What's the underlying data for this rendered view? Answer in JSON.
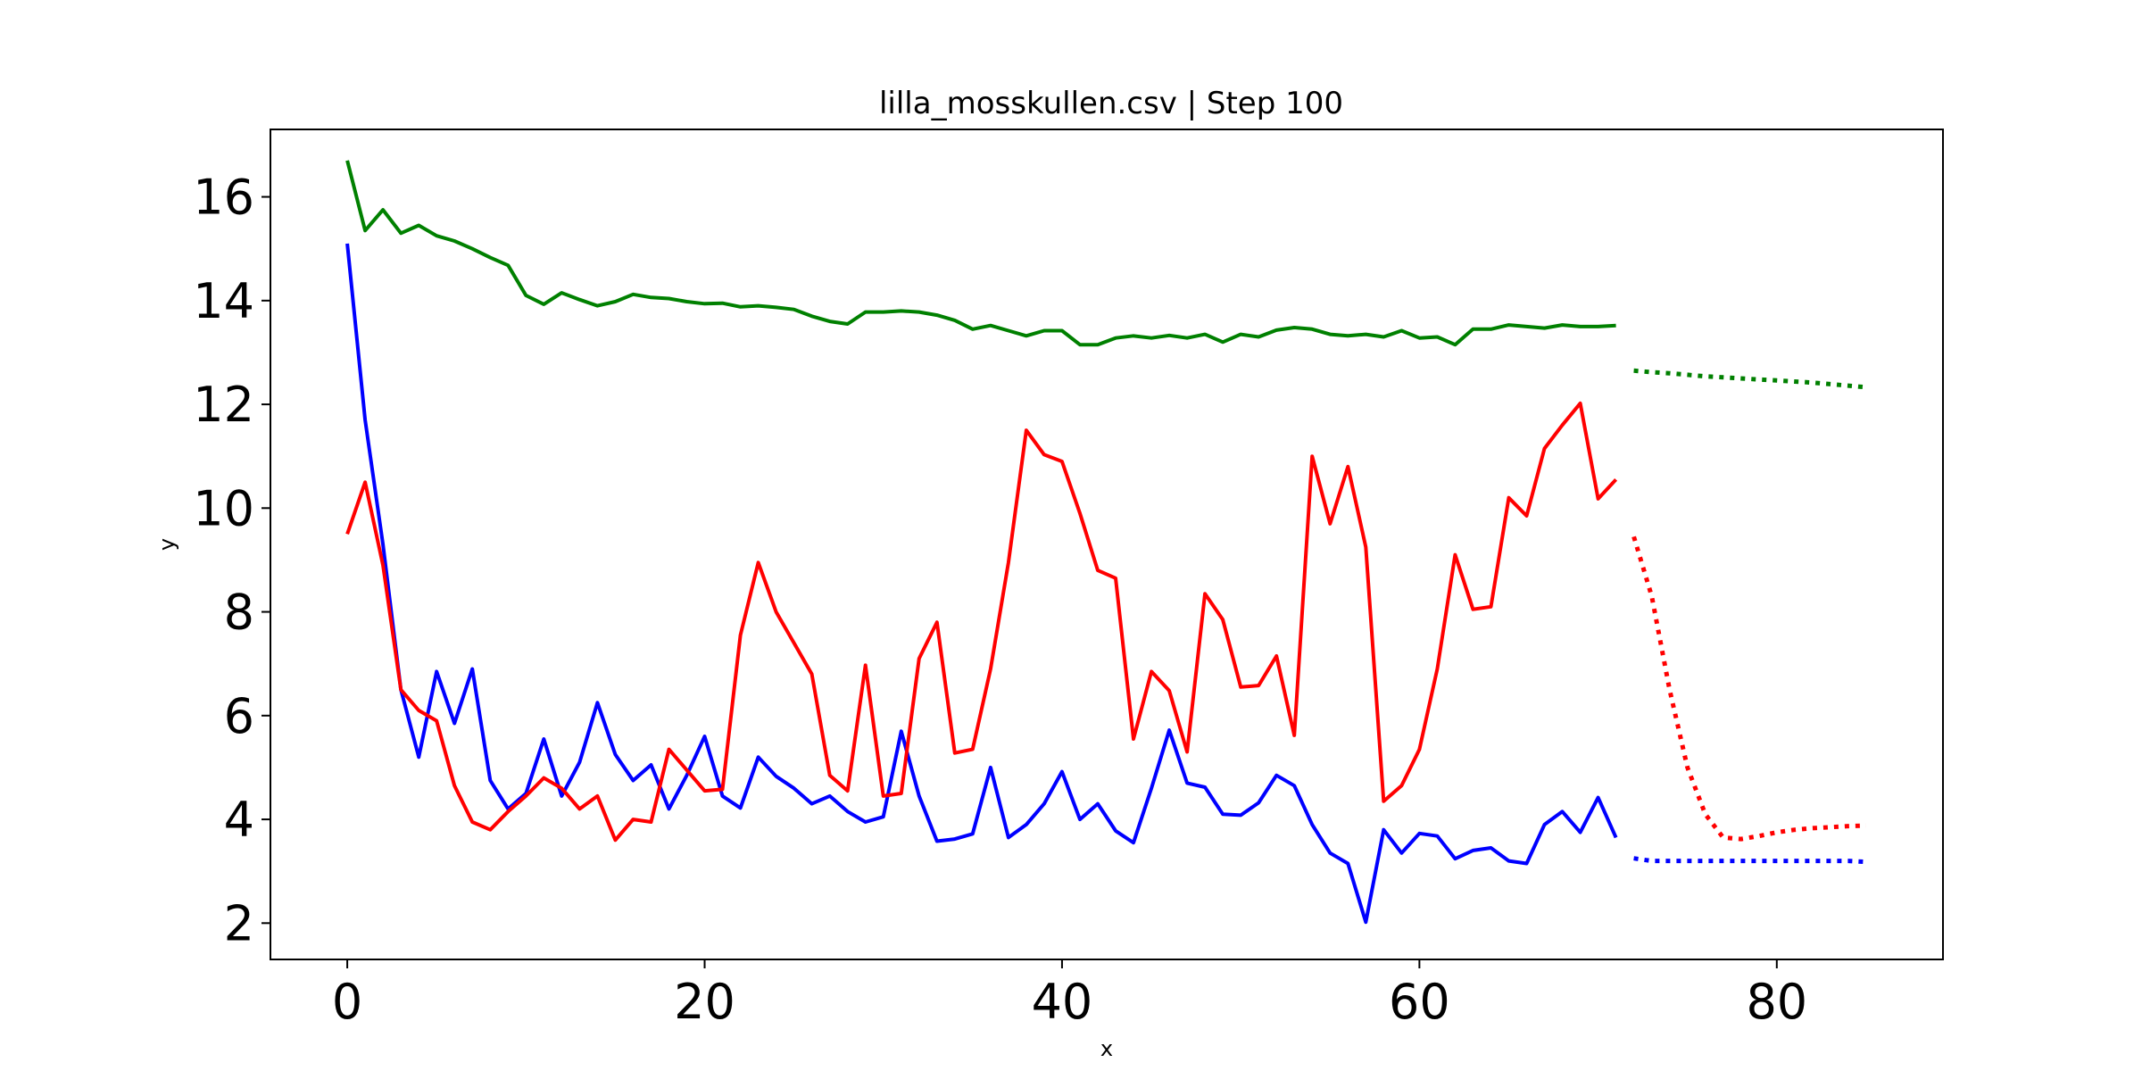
{
  "chart_data": {
    "type": "line",
    "title": "lilla_mosskullen.csv | Step 100",
    "xlabel": "x",
    "ylabel": "y",
    "xlim": [
      -4.3,
      89.3
    ],
    "ylim": [
      1.3,
      17.3
    ],
    "xticks": [
      0,
      20,
      40,
      60,
      80
    ],
    "yticks": [
      2,
      4,
      6,
      8,
      10,
      12,
      14,
      16
    ],
    "grid": false,
    "legend": "none",
    "series": [
      {
        "color": "#008000",
        "style": "solid",
        "x_start": 0,
        "values": [
          16.7,
          15.35,
          15.75,
          15.3,
          15.45,
          15.25,
          15.15,
          15.0,
          14.83,
          14.68,
          14.1,
          13.93,
          14.15,
          14.02,
          13.9,
          13.98,
          14.12,
          14.06,
          14.04,
          13.98,
          13.94,
          13.95,
          13.88,
          13.9,
          13.87,
          13.83,
          13.7,
          13.6,
          13.55,
          13.78,
          13.78,
          13.8,
          13.78,
          13.72,
          13.62,
          13.45,
          13.52,
          13.42,
          13.32,
          13.42,
          13.42,
          13.15,
          13.15,
          13.28,
          13.32,
          13.28,
          13.33,
          13.28,
          13.35,
          13.2,
          13.35,
          13.3,
          13.43,
          13.48,
          13.45,
          13.35,
          13.32,
          13.35,
          13.3,
          13.42,
          13.28,
          13.3,
          13.15,
          13.45,
          13.45,
          13.53,
          13.5,
          13.47,
          13.53,
          13.5,
          13.5,
          13.52
        ]
      },
      {
        "color": "#0000ff",
        "style": "solid",
        "x_start": 0,
        "values": [
          15.1,
          11.7,
          9.3,
          6.5,
          5.2,
          6.85,
          5.85,
          6.9,
          4.75,
          4.2,
          4.5,
          5.55,
          4.45,
          5.1,
          6.25,
          5.25,
          4.75,
          5.05,
          4.2,
          4.85,
          5.6,
          4.45,
          4.22,
          5.2,
          4.83,
          4.6,
          4.3,
          4.45,
          4.15,
          3.95,
          4.05,
          5.7,
          4.45,
          3.58,
          3.62,
          3.72,
          5.0,
          3.65,
          3.9,
          4.3,
          4.92,
          4.0,
          4.3,
          3.78,
          3.55,
          4.6,
          5.72,
          4.7,
          4.62,
          4.1,
          4.08,
          4.32,
          4.85,
          4.65,
          3.9,
          3.35,
          3.15,
          2.02,
          3.8,
          3.35,
          3.73,
          3.68,
          3.24,
          3.4,
          3.45,
          3.2,
          3.15,
          3.9,
          4.15,
          3.75,
          4.42,
          3.65
        ]
      },
      {
        "color": "#ff0000",
        "style": "solid",
        "x_start": 0,
        "values": [
          9.5,
          10.5,
          8.9,
          6.5,
          6.1,
          5.9,
          4.65,
          3.95,
          3.8,
          4.15,
          4.45,
          4.8,
          4.6,
          4.2,
          4.45,
          3.6,
          4.0,
          3.95,
          5.35,
          4.95,
          4.55,
          4.58,
          7.55,
          8.95,
          8.0,
          7.4,
          6.8,
          4.85,
          4.55,
          6.97,
          4.45,
          4.5,
          7.1,
          7.8,
          5.28,
          5.35,
          6.9,
          8.95,
          11.5,
          11.03,
          10.9,
          9.9,
          8.8,
          8.65,
          5.55,
          6.85,
          6.48,
          5.3,
          8.35,
          7.85,
          6.55,
          6.58,
          7.15,
          5.62,
          11.0,
          9.7,
          10.8,
          9.25,
          4.35,
          4.65,
          5.35,
          6.9,
          9.1,
          8.05,
          8.1,
          10.2,
          9.85,
          11.15,
          11.6,
          12.02,
          10.18,
          10.55
        ]
      },
      {
        "color": "#008000",
        "style": "dotted",
        "x_start": 72,
        "values": [
          12.65,
          12.62,
          12.6,
          12.57,
          12.54,
          12.52,
          12.5,
          12.48,
          12.46,
          12.44,
          12.42,
          12.39,
          12.36,
          12.33
        ]
      },
      {
        "color": "#0000ff",
        "style": "dotted",
        "x_start": 72,
        "values": [
          3.25,
          3.2,
          3.2,
          3.2,
          3.2,
          3.2,
          3.2,
          3.2,
          3.2,
          3.2,
          3.2,
          3.2,
          3.2,
          3.18
        ]
      },
      {
        "color": "#ff0000",
        "style": "dotted",
        "x_start": 72,
        "values": [
          9.45,
          8.3,
          6.5,
          5.0,
          4.1,
          3.65,
          3.62,
          3.68,
          3.75,
          3.8,
          3.83,
          3.85,
          3.87,
          3.88
        ]
      }
    ]
  }
}
